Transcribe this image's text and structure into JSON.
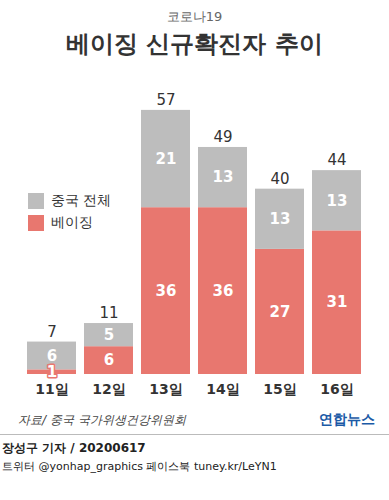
{
  "chart_data": {
    "type": "bar",
    "subtitle": "코로나19",
    "title": "베이징 신규확진자 추이",
    "categories": [
      "11일",
      "12일",
      "13일",
      "14일",
      "15일",
      "16일"
    ],
    "series": [
      {
        "name": "베이징",
        "color": "#e8776f",
        "values": [
          1,
          6,
          36,
          36,
          27,
          31
        ]
      },
      {
        "name": "중국 전체",
        "color": "#bdbdbd",
        "values": [
          6,
          5,
          21,
          13,
          13,
          13
        ]
      }
    ],
    "totals": [
      7,
      11,
      57,
      49,
      40,
      44
    ],
    "stacked": true,
    "data_labels": true,
    "tick_labels": "x",
    "grid": false,
    "legend": "top-left",
    "ylim": [
      0,
      60
    ],
    "source": "자료/ 중국 국가위생건강위원회",
    "logo": "연합뉴스",
    "byline": "장성구 기자 / 20200617",
    "footer": "트위터 @yonhap_graphics 페이스북 tuney.kr/LeYN1"
  }
}
